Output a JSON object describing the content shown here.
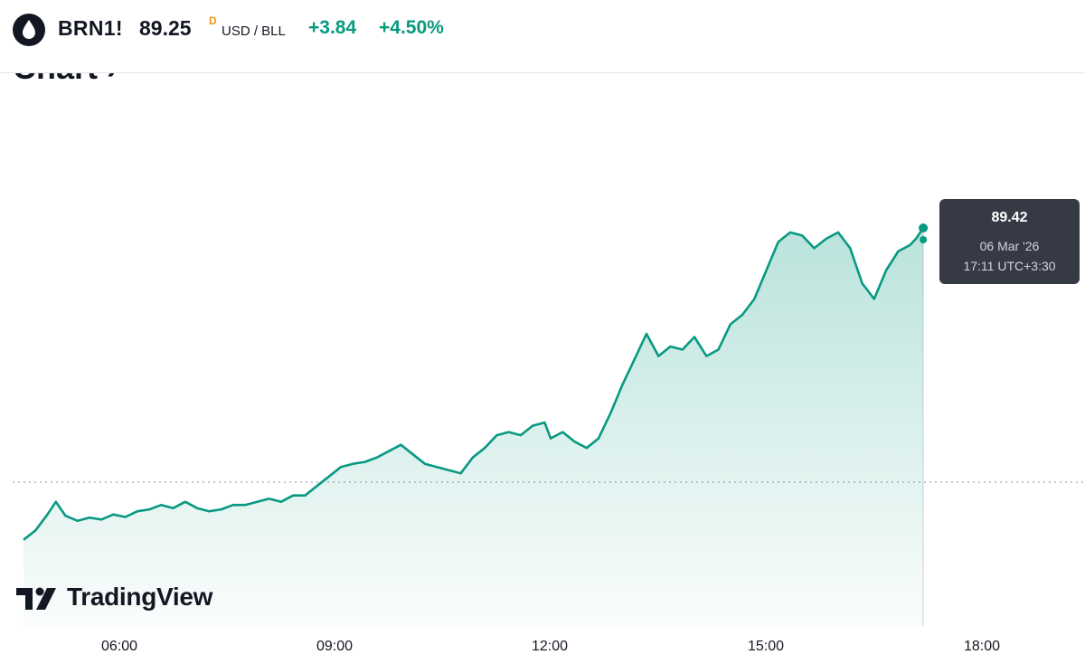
{
  "header": {
    "ticker": "BRN1!",
    "price": "89.25",
    "delayed_flag": "D",
    "currency": "USD / BLL",
    "change": "+3.84",
    "change_pct": "+4.50%"
  },
  "section_title": "Chart ›",
  "tooltip": {
    "price": "89.42",
    "date": "06 Mar '26",
    "time": "17:11 UTC+3:30"
  },
  "logo_text": "TradingView",
  "colors": {
    "line": "#089981",
    "up": "#089981",
    "tooltip_bg": "#363a45",
    "delayed": "#f7931a"
  },
  "chart_data": {
    "type": "area",
    "x_tick_labels": [
      "06:00",
      "09:00",
      "12:00",
      "15:00",
      "18:00"
    ],
    "xlim": [
      "04:40",
      "18:00"
    ],
    "ylim": [
      84.3,
      90.5
    ],
    "grid": false,
    "previous_close": 85.41,
    "last_value": 89.42,
    "series": [
      {
        "x": [
          "04:40",
          "04:50",
          "05:00",
          "05:07",
          "05:15",
          "05:25",
          "05:35",
          "05:45",
          "05:55",
          "06:05",
          "06:15",
          "06:25",
          "06:35",
          "06:45",
          "06:55",
          "07:05",
          "07:15",
          "07:25",
          "07:35",
          "07:45",
          "07:55",
          "08:05",
          "08:15",
          "08:25",
          "08:35",
          "08:45",
          "08:55",
          "09:05",
          "09:15",
          "09:25",
          "09:35",
          "09:45",
          "09:55",
          "10:05",
          "10:15",
          "10:25",
          "10:35",
          "10:45",
          "10:55",
          "11:05",
          "11:15",
          "11:25",
          "11:35",
          "11:45",
          "11:55",
          "12:00",
          "12:10",
          "12:20",
          "12:30",
          "12:40",
          "12:50",
          "13:00",
          "13:10",
          "13:20",
          "13:30",
          "13:40",
          "13:50",
          "14:00",
          "14:10",
          "14:20",
          "14:30",
          "14:40",
          "14:50",
          "15:00",
          "15:10",
          "15:20",
          "15:30",
          "15:40",
          "15:50",
          "16:00",
          "16:10",
          "16:20",
          "16:30",
          "16:40",
          "16:50",
          "17:00",
          "17:05",
          "17:11"
        ],
        "y": [
          84.5,
          84.65,
          84.9,
          85.1,
          84.88,
          84.8,
          84.85,
          84.82,
          84.9,
          84.86,
          84.95,
          84.98,
          85.05,
          85.0,
          85.1,
          85.0,
          84.95,
          84.98,
          85.05,
          85.05,
          85.1,
          85.15,
          85.1,
          85.2,
          85.2,
          85.35,
          85.5,
          85.65,
          85.7,
          85.73,
          85.8,
          85.9,
          86.0,
          85.85,
          85.7,
          85.65,
          85.6,
          85.55,
          85.8,
          85.95,
          86.15,
          86.2,
          86.15,
          86.3,
          86.35,
          86.1,
          86.2,
          86.05,
          85.95,
          86.1,
          86.5,
          86.95,
          87.35,
          87.75,
          87.4,
          87.55,
          87.5,
          87.7,
          87.4,
          87.5,
          87.9,
          88.05,
          88.3,
          88.75,
          89.2,
          89.35,
          89.3,
          89.1,
          89.25,
          89.35,
          89.1,
          88.55,
          88.3,
          88.75,
          89.05,
          89.15,
          89.25,
          89.42
        ]
      }
    ]
  }
}
